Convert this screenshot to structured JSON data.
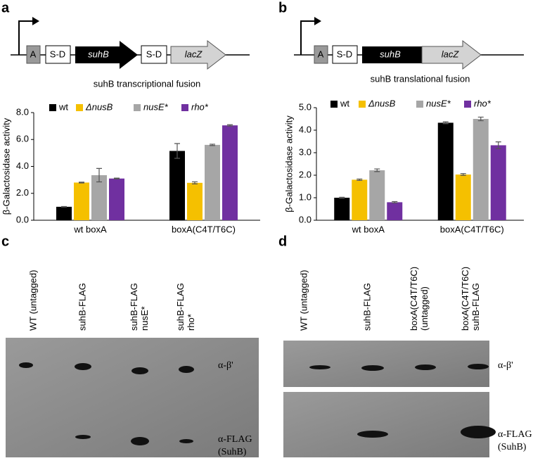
{
  "panel_labels": [
    "a",
    "b",
    "c",
    "d"
  ],
  "diagram_a": {
    "labels": [
      "A",
      "S-D",
      "suhB",
      "S-D",
      "lacZ"
    ]
  },
  "diagram_b": {
    "labels": [
      "A",
      "S-D",
      "suhB",
      "lacZ"
    ]
  },
  "chart_data": [
    {
      "type": "bar",
      "title": "suhB transcriptional fusion",
      "y_label": "β-Galactosidase activity",
      "categories": [
        "wt boxA",
        "boxA(C4T/T6C)"
      ],
      "series": [
        {
          "name": "wt",
          "color": "#000000",
          "values": [
            1.0,
            5.15
          ],
          "errors": [
            0.02,
            0.55
          ]
        },
        {
          "name": "ΔnusB",
          "color": "#f5c000",
          "values": [
            2.8,
            2.78
          ],
          "errors": [
            0.03,
            0.08
          ]
        },
        {
          "name": "nusE*",
          "color": "#a6a6a6",
          "values": [
            3.35,
            5.6
          ],
          "errors": [
            0.5,
            0.05
          ]
        },
        {
          "name": "rho*",
          "color": "#7030a0",
          "values": [
            3.1,
            7.05
          ],
          "errors": [
            0.03,
            0.05
          ]
        }
      ],
      "ylim": [
        0,
        8
      ],
      "yticks": [
        {
          "value": 0,
          "label": "0.0"
        },
        {
          "value": 2,
          "label": "2.0"
        },
        {
          "value": 4,
          "label": "4.0"
        },
        {
          "value": 6,
          "label": "6.0"
        },
        {
          "value": 8,
          "label": "8.0"
        }
      ]
    },
    {
      "type": "bar",
      "title": "suhB translational fusion",
      "y_label": "β-Galactosidase activity",
      "categories": [
        "wt boxA",
        "boxA(C4T/T6C)"
      ],
      "series": [
        {
          "name": "wt",
          "color": "#000000",
          "values": [
            1.0,
            4.33
          ],
          "errors": [
            0.02,
            0.04
          ]
        },
        {
          "name": "ΔnusB",
          "color": "#f5c000",
          "values": [
            1.8,
            2.03
          ],
          "errors": [
            0.03,
            0.04
          ]
        },
        {
          "name": "nusE*",
          "color": "#a6a6a6",
          "values": [
            2.22,
            4.5
          ],
          "errors": [
            0.06,
            0.08
          ]
        },
        {
          "name": "rho*",
          "color": "#7030a0",
          "values": [
            0.8,
            3.33
          ],
          "errors": [
            0.03,
            0.15
          ]
        }
      ],
      "ylim": [
        0,
        5
      ],
      "yticks": [
        {
          "value": 0,
          "label": "0.0"
        },
        {
          "value": 1,
          "label": "1.0"
        },
        {
          "value": 2,
          "label": "2.0"
        },
        {
          "value": 3,
          "label": "3.0"
        },
        {
          "value": 4,
          "label": "4.0"
        },
        {
          "value": 5,
          "label": "5.0"
        }
      ]
    }
  ],
  "blot_c": {
    "lanes": [
      [
        "WT (untagged)"
      ],
      [
        "suhB-FLAG"
      ],
      [
        "suhB-FLAG",
        "nusE*"
      ],
      [
        "suhB-FLAG",
        "rho*"
      ]
    ],
    "antibodies": [
      [
        "α-β'"
      ],
      [
        "α-FLAG",
        "(SuhB)"
      ]
    ]
  },
  "blot_d": {
    "lanes": [
      [
        "WT (untagged)"
      ],
      [
        "suhB-FLAG"
      ],
      [
        "boxA(C4T/T6C)",
        "(untagged)"
      ],
      [
        "boxA(C4T/T6C)",
        "suhB-FLAG"
      ]
    ],
    "antibodies": [
      [
        "α-β'"
      ],
      [
        "α-FLAG",
        "(SuhB)"
      ]
    ]
  }
}
